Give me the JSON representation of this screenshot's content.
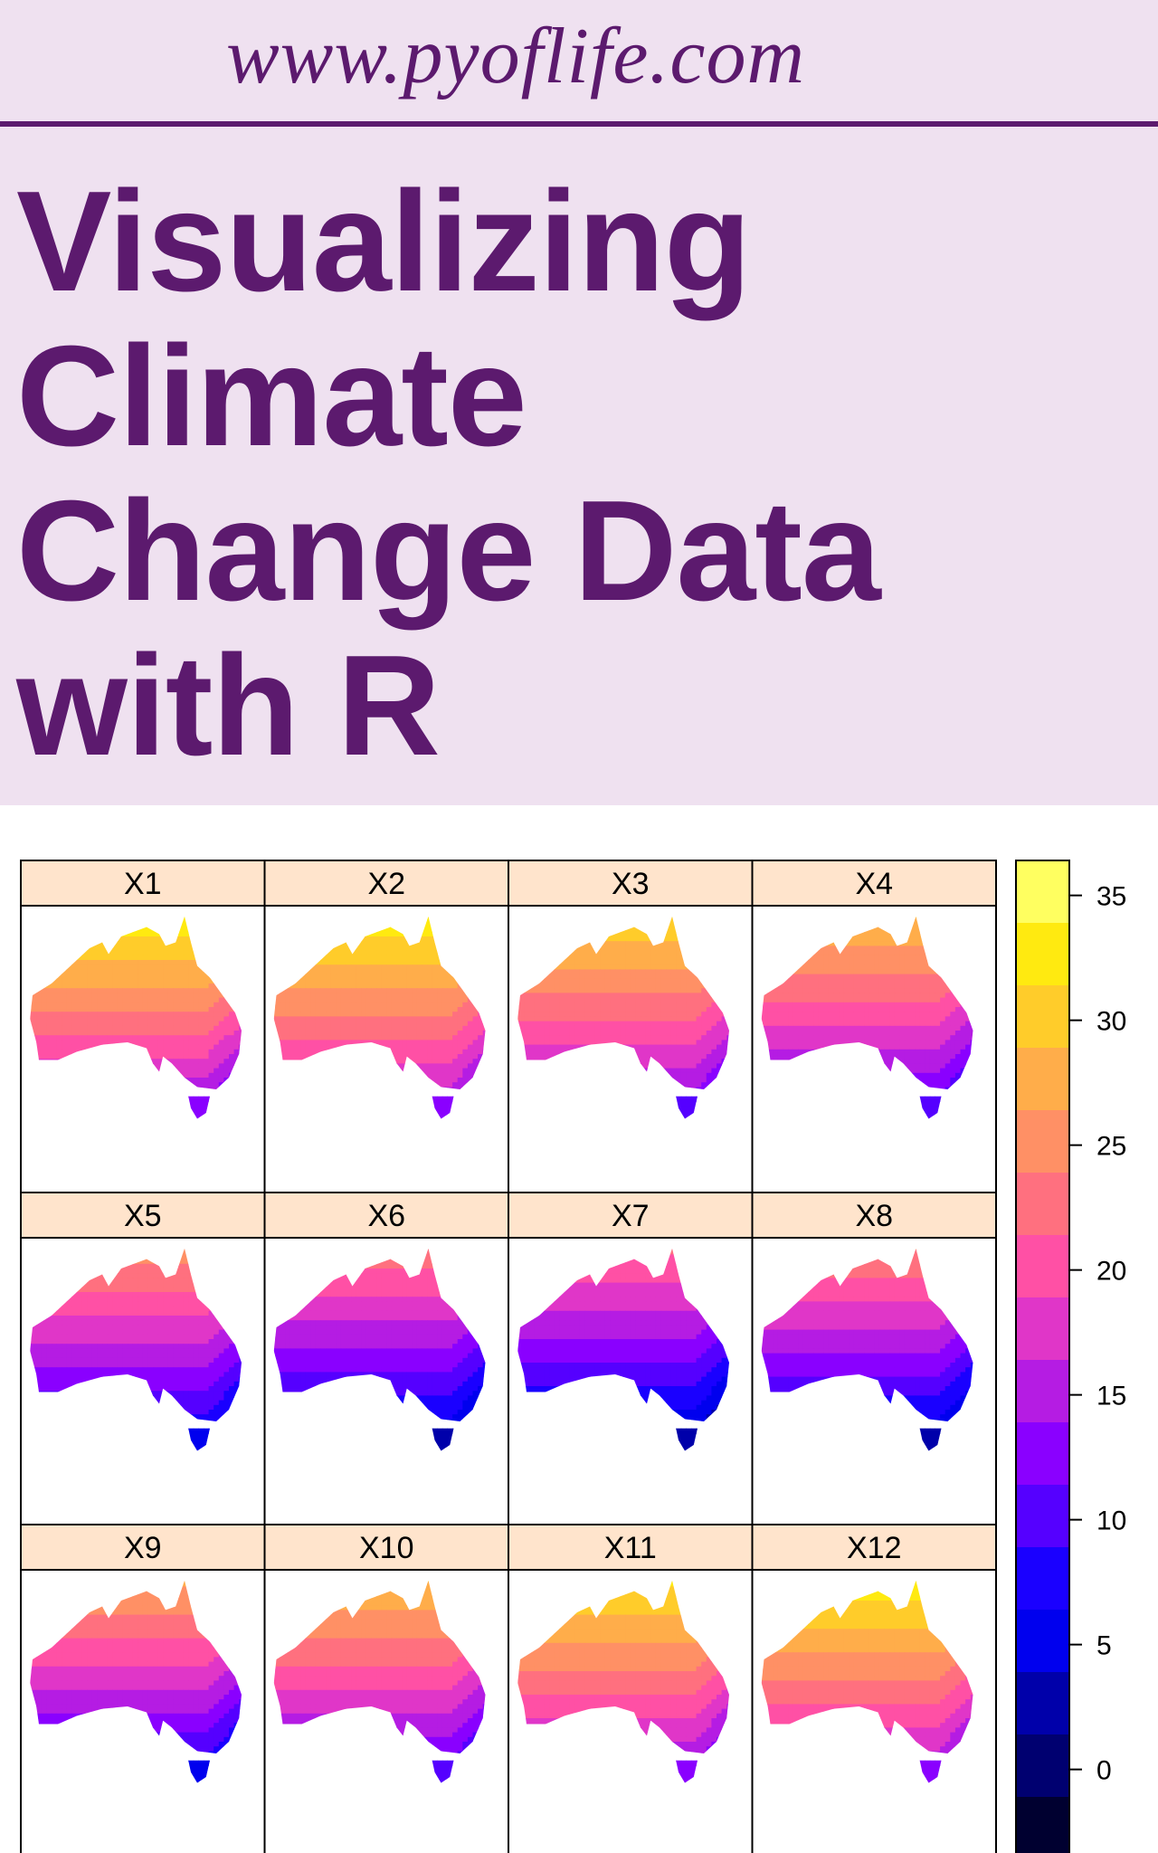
{
  "header": {
    "url": "www.pyoflife.com"
  },
  "title_lines": [
    "Visualizing",
    "Climate",
    "Change Data",
    "with R"
  ],
  "colors": {
    "banner_bg": "#efe1f0",
    "brand_purple": "#5c1a6e",
    "strip_bg": "#ffe4cc"
  },
  "chart_data": {
    "type": "heatmap",
    "layout": "3x4 panel grid of Australia maps with shared color key on right",
    "panels": [
      {
        "label": "X1",
        "north": 33,
        "south": 15
      },
      {
        "label": "X2",
        "north": 33,
        "south": 16
      },
      {
        "label": "X3",
        "north": 31,
        "south": 14
      },
      {
        "label": "X4",
        "north": 29,
        "south": 12
      },
      {
        "label": "X5",
        "north": 25,
        "south": 8
      },
      {
        "label": "X6",
        "north": 23,
        "south": 6
      },
      {
        "label": "X7",
        "north": 22,
        "south": 5
      },
      {
        "label": "X8",
        "north": 24,
        "south": 6
      },
      {
        "label": "X9",
        "north": 27,
        "south": 9
      },
      {
        "label": "X10",
        "north": 29,
        "south": 12
      },
      {
        "label": "X11",
        "north": 32,
        "south": 15
      },
      {
        "label": "X12",
        "north": 33,
        "south": 16
      }
    ],
    "colorkey": {
      "ticks": [
        "35",
        "30",
        "25",
        "20",
        "15",
        "10",
        "5",
        "0"
      ],
      "tick_values": [
        35,
        30,
        25,
        20,
        15,
        10,
        5,
        0
      ],
      "top_value": 36.4,
      "band_step": 2.5,
      "colors": [
        "#ffff60",
        "#ffea10",
        "#ffcc2a",
        "#ffad4a",
        "#ff9065",
        "#ff707f",
        "#ff50a5",
        "#e036c8",
        "#b51ce3",
        "#8a00ff",
        "#5500ff",
        "#1a00ff",
        "#0000ee",
        "#0000aa",
        "#000070",
        "#000030"
      ]
    }
  }
}
